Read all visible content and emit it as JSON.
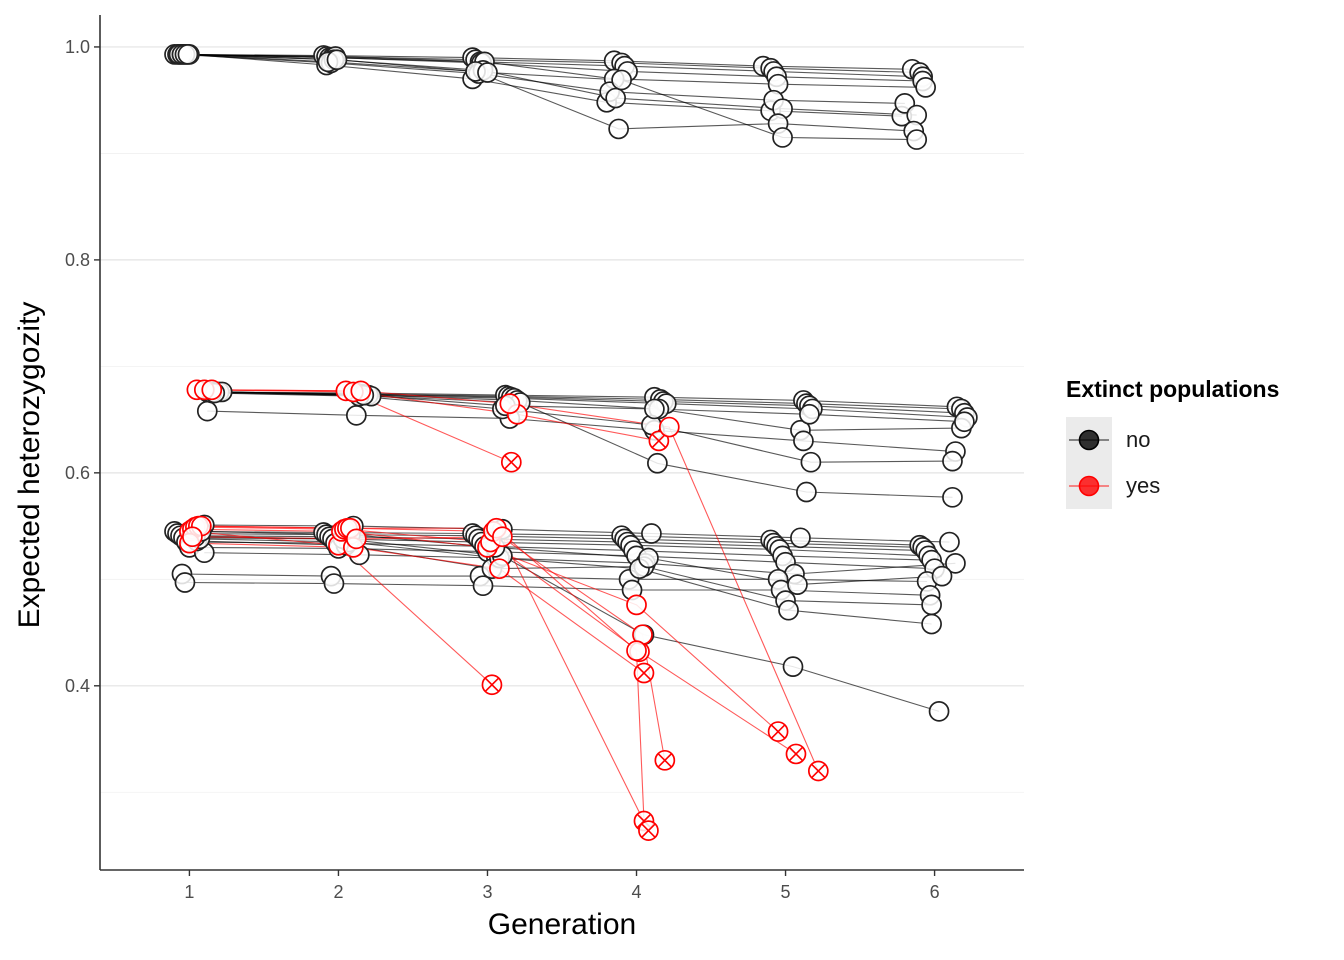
{
  "chart_data": {
    "type": "line",
    "title": "",
    "xlabel": "Generation",
    "ylabel": "Expected heterozygozity",
    "xlim": [
      0.4,
      6.6
    ],
    "ylim": [
      0.227,
      1.03
    ],
    "x_ticks": [
      1,
      2,
      3,
      4,
      5,
      6
    ],
    "y_ticks": [
      0.4,
      0.6,
      0.8,
      1.0
    ],
    "y_tick_labels": [
      "0.4",
      "0.6",
      "0.8",
      "1.0"
    ],
    "grid": "horizontal major and minor lines",
    "legend": {
      "title": "Extinct populations",
      "placement": "right",
      "entries": [
        {
          "label": "no",
          "color": "#000000"
        },
        {
          "label": "yes",
          "color": "#ff0000"
        }
      ]
    },
    "series": [
      {
        "extinct": "no",
        "x": [
          0.9,
          1.9,
          2.9,
          3.85,
          4.85,
          5.85
        ],
        "y": [
          0.993,
          0.992,
          0.99,
          0.987,
          0.982,
          0.979
        ]
      },
      {
        "extinct": "no",
        "x": [
          0.92,
          1.92,
          2.92,
          3.9,
          4.9,
          5.9
        ],
        "y": [
          0.993,
          0.991,
          0.988,
          0.985,
          0.98,
          0.976
        ]
      },
      {
        "extinct": "no",
        "x": [
          0.94,
          1.94,
          2.95,
          3.92,
          4.92,
          5.92
        ],
        "y": [
          0.993,
          0.99,
          0.986,
          0.982,
          0.977,
          0.972
        ]
      },
      {
        "extinct": "no",
        "x": [
          0.96,
          1.96,
          2.96,
          3.94,
          4.94,
          5.92
        ],
        "y": [
          0.993,
          0.99,
          0.985,
          0.977,
          0.972,
          0.968
        ]
      },
      {
        "extinct": "no",
        "x": [
          0.98,
          1.98,
          2.98,
          3.85,
          4.95,
          5.94
        ],
        "y": [
          0.993,
          0.991,
          0.986,
          0.97,
          0.965,
          0.962
        ]
      },
      {
        "extinct": "no",
        "x": [
          1.0,
          1.92,
          2.9,
          3.8,
          4.9,
          5.78
        ],
        "y": [
          0.993,
          0.983,
          0.97,
          0.948,
          0.94,
          0.935
        ]
      },
      {
        "extinct": "no",
        "x": [
          0.93,
          1.95,
          2.94,
          3.82,
          4.92,
          5.8
        ],
        "y": [
          0.993,
          0.985,
          0.975,
          0.958,
          0.95,
          0.947
        ]
      },
      {
        "extinct": "no",
        "x": [
          0.95,
          1.97,
          2.97,
          3.86,
          4.98,
          5.88
        ],
        "y": [
          0.993,
          0.988,
          0.978,
          0.952,
          0.942,
          0.936
        ]
      },
      {
        "extinct": "no",
        "x": [
          0.97,
          1.93,
          2.92,
          3.88,
          4.95,
          5.86
        ],
        "y": [
          0.993,
          0.986,
          0.977,
          0.923,
          0.928,
          0.921
        ]
      },
      {
        "extinct": "no",
        "x": [
          0.99,
          1.99,
          3.0,
          3.9,
          4.98,
          5.88
        ],
        "y": [
          0.993,
          0.988,
          0.976,
          0.969,
          0.915,
          0.913
        ]
      },
      {
        "extinct": "no",
        "x": [
          1.12,
          2.12,
          3.12,
          4.12,
          5.12,
          6.15
        ],
        "y": [
          0.676,
          0.675,
          0.673,
          0.671,
          0.668,
          0.662
        ]
      },
      {
        "extinct": "no",
        "x": [
          1.14,
          2.14,
          3.14,
          4.16,
          5.14,
          6.18
        ],
        "y": [
          0.676,
          0.674,
          0.672,
          0.669,
          0.665,
          0.66
        ]
      },
      {
        "extinct": "no",
        "x": [
          1.16,
          2.16,
          3.16,
          4.18,
          5.16,
          6.2
        ],
        "y": [
          0.676,
          0.674,
          0.671,
          0.667,
          0.663,
          0.656
        ]
      },
      {
        "extinct": "no",
        "x": [
          1.18,
          2.18,
          3.18,
          4.2,
          5.18,
          6.22
        ],
        "y": [
          0.676,
          0.673,
          0.67,
          0.665,
          0.66,
          0.652
        ]
      },
      {
        "extinct": "no",
        "x": [
          1.2,
          2.2,
          3.2,
          4.15,
          5.1,
          6.18
        ],
        "y": [
          0.676,
          0.673,
          0.668,
          0.66,
          0.64,
          0.642
        ]
      },
      {
        "extinct": "no",
        "x": [
          1.12,
          2.12,
          3.15,
          4.12,
          5.12,
          6.14
        ],
        "y": [
          0.658,
          0.654,
          0.651,
          0.64,
          0.63,
          0.62
        ]
      },
      {
        "extinct": "no",
        "x": [
          1.22,
          2.22,
          3.22,
          4.14,
          5.14,
          6.12
        ],
        "y": [
          0.676,
          0.672,
          0.666,
          0.609,
          0.582,
          0.577
        ]
      },
      {
        "extinct": "no",
        "x": [
          1.15,
          2.14,
          3.1,
          4.1,
          5.17,
          6.12
        ],
        "y": [
          0.675,
          0.672,
          0.66,
          0.645,
          0.61,
          0.611
        ]
      },
      {
        "extinct": "no",
        "x": [
          1.17,
          2.17,
          3.12,
          4.12,
          5.16,
          6.2
        ],
        "y": [
          0.675,
          0.673,
          0.663,
          0.66,
          0.655,
          0.648
        ]
      },
      {
        "extinct": "no",
        "x": [
          0.9,
          1.9,
          2.9,
          3.9,
          4.9,
          5.9
        ],
        "y": [
          0.545,
          0.544,
          0.543,
          0.541,
          0.537,
          0.532
        ]
      },
      {
        "extinct": "no",
        "x": [
          0.92,
          1.92,
          2.92,
          3.92,
          4.92,
          5.92
        ],
        "y": [
          0.543,
          0.542,
          0.541,
          0.538,
          0.534,
          0.53
        ]
      },
      {
        "extinct": "no",
        "x": [
          0.94,
          1.94,
          2.94,
          3.94,
          4.94,
          5.94
        ],
        "y": [
          0.541,
          0.54,
          0.538,
          0.535,
          0.531,
          0.527
        ]
      },
      {
        "extinct": "no",
        "x": [
          0.96,
          1.96,
          2.96,
          3.96,
          4.96,
          5.96
        ],
        "y": [
          0.539,
          0.538,
          0.535,
          0.532,
          0.528,
          0.522
        ]
      },
      {
        "extinct": "no",
        "x": [
          0.98,
          1.98,
          2.98,
          3.98,
          4.98,
          5.98
        ],
        "y": [
          0.535,
          0.534,
          0.531,
          0.527,
          0.522,
          0.518
        ]
      },
      {
        "extinct": "no",
        "x": [
          1.0,
          2.0,
          3.0,
          4.0,
          5.0,
          6.0
        ],
        "y": [
          0.53,
          0.529,
          0.526,
          0.522,
          0.516,
          0.51
        ]
      },
      {
        "extinct": "no",
        "x": [
          1.1,
          2.1,
          3.1,
          4.1,
          5.1,
          6.1
        ],
        "y": [
          0.551,
          0.55,
          0.547,
          0.543,
          0.539,
          0.535
        ]
      },
      {
        "extinct": "no",
        "x": [
          1.1,
          2.14,
          3.06,
          4.06,
          5.06,
          6.14
        ],
        "y": [
          0.525,
          0.523,
          0.52,
          0.515,
          0.505,
          0.515
        ]
      },
      {
        "extinct": "no",
        "x": [
          0.95,
          1.95,
          2.95,
          3.95,
          4.95,
          5.95
        ],
        "y": [
          0.505,
          0.503,
          0.503,
          0.5,
          0.5,
          0.498
        ]
      },
      {
        "extinct": "no",
        "x": [
          0.97,
          1.97,
          2.97,
          3.97,
          4.97,
          5.97
        ],
        "y": [
          0.497,
          0.496,
          0.494,
          0.49,
          0.49,
          0.485
        ]
      },
      {
        "extinct": "no",
        "x": [
          1.05,
          2.05,
          3.03,
          4.05,
          5.0,
          5.98
        ],
        "y": [
          0.536,
          0.532,
          0.51,
          0.512,
          0.48,
          0.476
        ]
      },
      {
        "extinct": "no",
        "x": [
          1.07,
          2.07,
          3.08,
          4.02,
          5.02,
          5.98
        ],
        "y": [
          0.538,
          0.535,
          0.52,
          0.51,
          0.471,
          0.458
        ]
      },
      {
        "extinct": "no",
        "x": [
          1.04,
          2.03,
          3.1,
          4.05,
          5.05,
          6.03
        ],
        "y": [
          0.54,
          0.538,
          0.522,
          0.448,
          0.418,
          0.376
        ]
      },
      {
        "extinct": "no",
        "x": [
          1.08,
          2.08,
          3.05,
          4.08,
          5.08,
          6.05
        ],
        "y": [
          0.545,
          0.542,
          0.53,
          0.52,
          0.495,
          0.503
        ]
      },
      {
        "extinct": "yes",
        "x": [
          1.05,
          2.05,
          3.16
        ],
        "y": [
          0.678,
          0.677,
          0.61
        ]
      },
      {
        "extinct": "yes",
        "x": [
          1.1,
          2.1,
          3.2,
          4.15
        ],
        "y": [
          0.678,
          0.676,
          0.655,
          0.63
        ]
      },
      {
        "extinct": "yes",
        "x": [
          1.15,
          2.15,
          3.15,
          4.22,
          5.22
        ],
        "y": [
          0.678,
          0.677,
          0.665,
          0.643,
          0.32
        ]
      },
      {
        "extinct": "yes",
        "x": [
          1.0,
          2.0,
          3.03
        ],
        "y": [
          0.545,
          0.532,
          0.401
        ]
      },
      {
        "extinct": "yes",
        "x": [
          1.02,
          2.02,
          3.0,
          4.0,
          4.95
        ],
        "y": [
          0.547,
          0.545,
          0.53,
          0.476,
          0.357
        ]
      },
      {
        "extinct": "yes",
        "x": [
          1.04,
          2.04,
          3.02,
          4.02,
          5.07
        ],
        "y": [
          0.549,
          0.547,
          0.535,
          0.432,
          0.336
        ]
      },
      {
        "extinct": "yes",
        "x": [
          1.06,
          2.06,
          3.04,
          4.04,
          4.19
        ],
        "y": [
          0.55,
          0.548,
          0.545,
          0.448,
          0.33
        ]
      },
      {
        "extinct": "yes",
        "x": [
          1.08,
          2.08,
          3.06,
          4.0,
          4.05
        ],
        "y": [
          0.55,
          0.548,
          0.548,
          0.433,
          0.273
        ]
      },
      {
        "extinct": "yes",
        "x": [
          1.0,
          2.1,
          3.08,
          4.05
        ],
        "y": [
          0.534,
          0.53,
          0.51,
          0.412
        ]
      },
      {
        "extinct": "yes",
        "x": [
          1.02,
          2.12,
          3.1,
          4.08
        ],
        "y": [
          0.54,
          0.538,
          0.54,
          0.264
        ]
      }
    ]
  }
}
